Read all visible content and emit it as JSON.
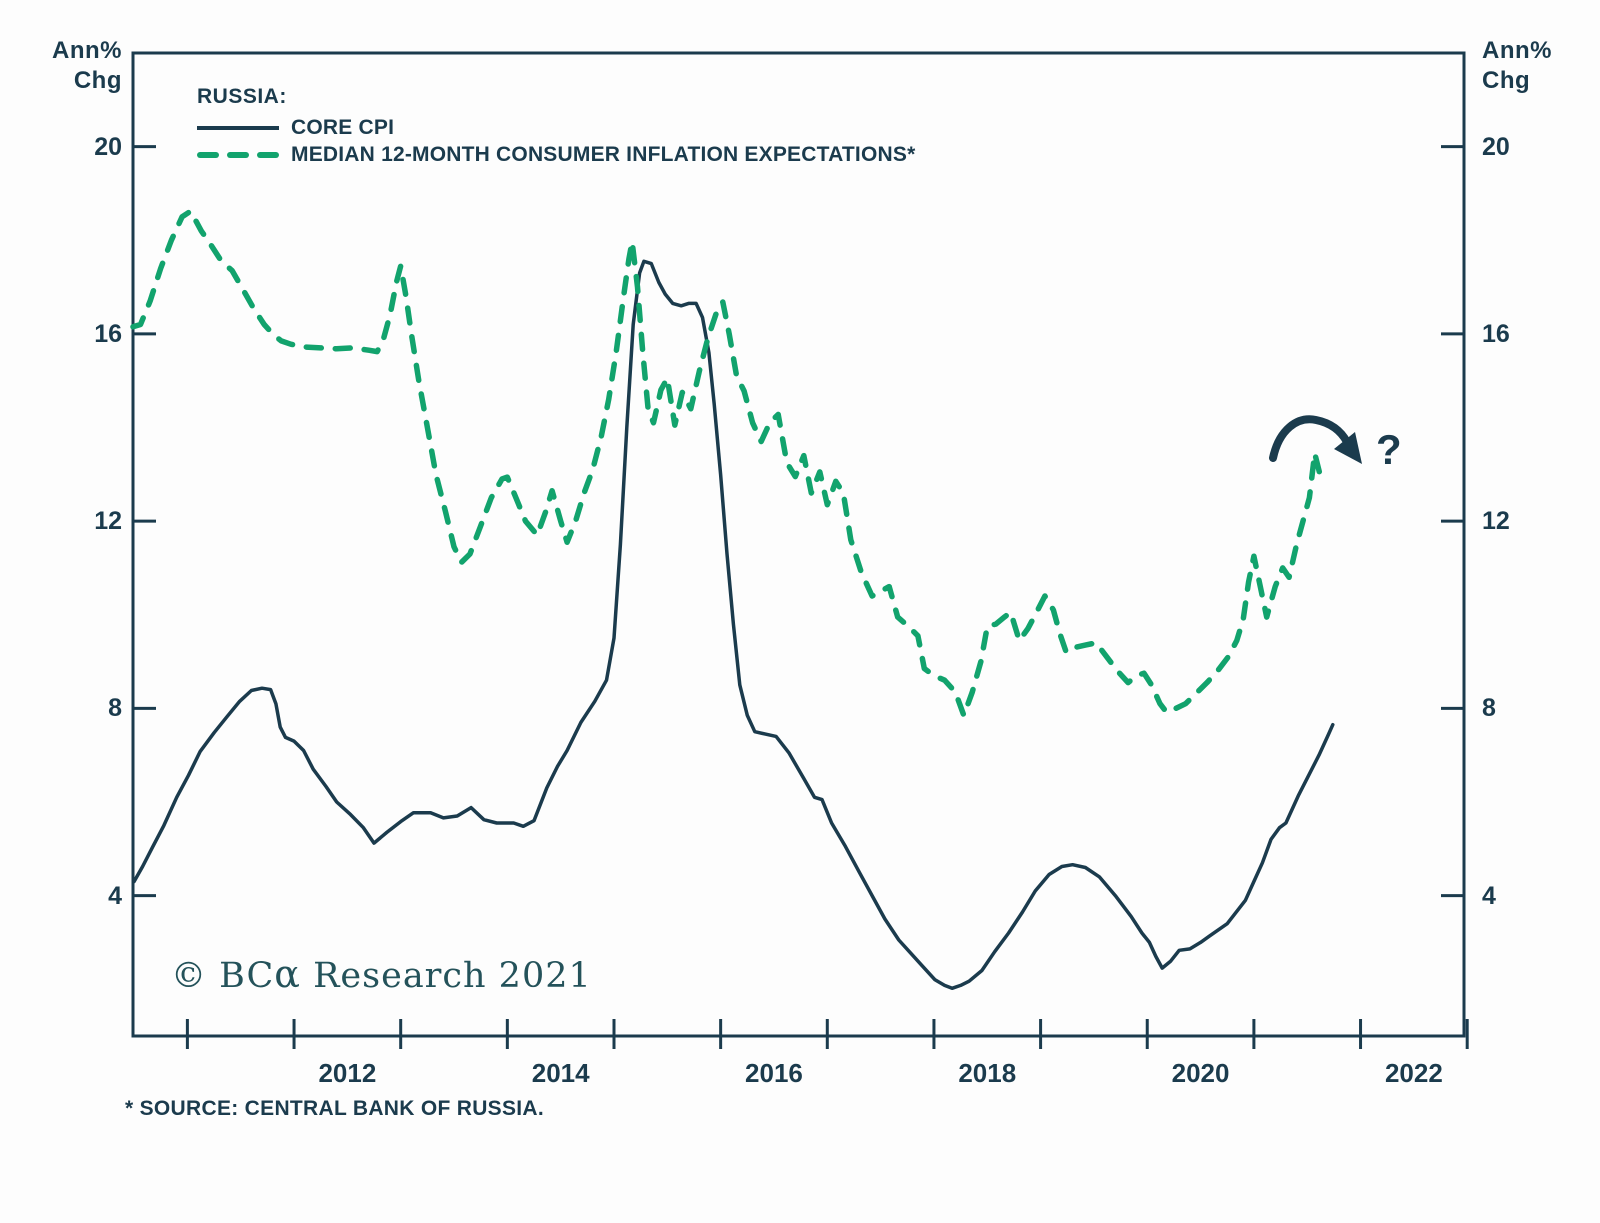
{
  "colors": {
    "navy": "#1b3b4d",
    "green": "#12a36d",
    "copyright_teal": "#24525a",
    "background": "#fdfdfd"
  },
  "axis_units": {
    "line1": "Ann%",
    "line2": "Chg"
  },
  "legend": {
    "title": "RUSSIA:",
    "series": [
      {
        "label": "CORE CPI",
        "swatch": "solid-navy-line"
      },
      {
        "label": "MEDIAN 12-MONTH CONSUMER INFLATION EXPECTATIONS*",
        "swatch": "dashed-green-line"
      }
    ]
  },
  "annotations": {
    "question_mark": "?",
    "trend_arrow": "curved-arrow-down-right"
  },
  "footer": {
    "copyright_prefix": "© BC",
    "copyright_alpha": "α",
    "copyright_suffix": " Research 2021",
    "source_note": "* SOURCE: CENTRAL BANK OF RUSSIA."
  },
  "chart_data": {
    "type": "line",
    "title": "RUSSIA: CORE CPI vs MEDIAN 12-MONTH CONSUMER INFLATION EXPECTATIONS",
    "xlabel": "",
    "ylabel": "Ann% Chg",
    "grid": false,
    "legend_position": "top-left-inside",
    "x_range": [
      2010.49,
      2022.97
    ],
    "y_range": [
      1.0,
      22.0
    ],
    "y_ticks": [
      4,
      8,
      12,
      16,
      20
    ],
    "x_ticks_years": [
      2011,
      2012,
      2013,
      2014,
      2015,
      2016,
      2017,
      2018,
      2019,
      2020,
      2021,
      2022,
      2023
    ],
    "x_year_labels": [
      2012,
      2014,
      2016,
      2018,
      2020,
      2022
    ],
    "series": [
      {
        "name": "CORE CPI",
        "style": "solid",
        "color": "#1b3b4d",
        "points": [
          [
            2010.5,
            4.3
          ],
          [
            2010.58,
            4.62
          ],
          [
            2010.67,
            5.02
          ],
          [
            2010.78,
            5.5
          ],
          [
            2010.9,
            6.1
          ],
          [
            2011.01,
            6.57
          ],
          [
            2011.12,
            7.08
          ],
          [
            2011.25,
            7.48
          ],
          [
            2011.37,
            7.82
          ],
          [
            2011.49,
            8.15
          ],
          [
            2011.6,
            8.38
          ],
          [
            2011.7,
            8.43
          ],
          [
            2011.78,
            8.4
          ],
          [
            2011.83,
            8.1
          ],
          [
            2011.87,
            7.6
          ],
          [
            2011.92,
            7.38
          ],
          [
            2012.0,
            7.3
          ],
          [
            2012.09,
            7.1
          ],
          [
            2012.18,
            6.7
          ],
          [
            2012.3,
            6.33
          ],
          [
            2012.4,
            6.0
          ],
          [
            2012.53,
            5.73
          ],
          [
            2012.65,
            5.45
          ],
          [
            2012.75,
            5.12
          ],
          [
            2012.87,
            5.35
          ],
          [
            2013.0,
            5.58
          ],
          [
            2013.12,
            5.77
          ],
          [
            2013.28,
            5.77
          ],
          [
            2013.4,
            5.66
          ],
          [
            2013.53,
            5.7
          ],
          [
            2013.66,
            5.88
          ],
          [
            2013.78,
            5.62
          ],
          [
            2013.9,
            5.55
          ],
          [
            2014.06,
            5.55
          ],
          [
            2014.15,
            5.48
          ],
          [
            2014.25,
            5.6
          ],
          [
            2014.37,
            6.3
          ],
          [
            2014.47,
            6.76
          ],
          [
            2014.56,
            7.1
          ],
          [
            2014.69,
            7.7
          ],
          [
            2014.82,
            8.15
          ],
          [
            2014.93,
            8.6
          ],
          [
            2015.0,
            9.5
          ],
          [
            2015.06,
            11.5
          ],
          [
            2015.12,
            14.0
          ],
          [
            2015.18,
            16.2
          ],
          [
            2015.24,
            17.3
          ],
          [
            2015.28,
            17.55
          ],
          [
            2015.35,
            17.5
          ],
          [
            2015.42,
            17.1
          ],
          [
            2015.48,
            16.85
          ],
          [
            2015.55,
            16.65
          ],
          [
            2015.63,
            16.6
          ],
          [
            2015.7,
            16.65
          ],
          [
            2015.77,
            16.65
          ],
          [
            2015.83,
            16.35
          ],
          [
            2015.89,
            15.6
          ],
          [
            2015.94,
            14.5
          ],
          [
            2016.0,
            13.0
          ],
          [
            2016.06,
            11.3
          ],
          [
            2016.12,
            9.8
          ],
          [
            2016.18,
            8.5
          ],
          [
            2016.25,
            7.85
          ],
          [
            2016.32,
            7.5
          ],
          [
            2016.42,
            7.45
          ],
          [
            2016.52,
            7.4
          ],
          [
            2016.64,
            7.05
          ],
          [
            2016.78,
            6.5
          ],
          [
            2016.88,
            6.1
          ],
          [
            2016.95,
            6.05
          ],
          [
            2017.04,
            5.55
          ],
          [
            2017.17,
            5.05
          ],
          [
            2017.3,
            4.5
          ],
          [
            2017.42,
            4.0
          ],
          [
            2017.54,
            3.5
          ],
          [
            2017.67,
            3.05
          ],
          [
            2017.77,
            2.8
          ],
          [
            2017.89,
            2.5
          ],
          [
            2018.01,
            2.2
          ],
          [
            2018.1,
            2.08
          ],
          [
            2018.17,
            2.02
          ],
          [
            2018.25,
            2.08
          ],
          [
            2018.33,
            2.17
          ],
          [
            2018.45,
            2.4
          ],
          [
            2018.57,
            2.8
          ],
          [
            2018.7,
            3.2
          ],
          [
            2018.83,
            3.65
          ],
          [
            2018.95,
            4.1
          ],
          [
            2019.08,
            4.45
          ],
          [
            2019.2,
            4.62
          ],
          [
            2019.3,
            4.66
          ],
          [
            2019.42,
            4.6
          ],
          [
            2019.55,
            4.4
          ],
          [
            2019.7,
            4.0
          ],
          [
            2019.85,
            3.55
          ],
          [
            2019.95,
            3.2
          ],
          [
            2020.02,
            3.0
          ],
          [
            2020.08,
            2.7
          ],
          [
            2020.14,
            2.45
          ],
          [
            2020.22,
            2.6
          ],
          [
            2020.3,
            2.83
          ],
          [
            2020.4,
            2.86
          ],
          [
            2020.5,
            3.0
          ],
          [
            2020.58,
            3.13
          ],
          [
            2020.75,
            3.4
          ],
          [
            2020.92,
            3.9
          ],
          [
            2021.0,
            4.3
          ],
          [
            2021.08,
            4.7
          ],
          [
            2021.16,
            5.2
          ],
          [
            2021.24,
            5.45
          ],
          [
            2021.3,
            5.55
          ],
          [
            2021.42,
            6.15
          ],
          [
            2021.52,
            6.6
          ],
          [
            2021.61,
            7.0
          ],
          [
            2021.7,
            7.45
          ],
          [
            2021.74,
            7.65
          ]
        ]
      },
      {
        "name": "MEDIAN 12-MONTH CONSUMER INFLATION EXPECTATIONS",
        "style": "dashed",
        "color": "#12a36d",
        "points": [
          [
            2010.49,
            16.15
          ],
          [
            2010.56,
            16.2
          ],
          [
            2010.65,
            16.7
          ],
          [
            2010.75,
            17.4
          ],
          [
            2010.85,
            18.0
          ],
          [
            2010.95,
            18.5
          ],
          [
            2011.03,
            18.62
          ],
          [
            2011.13,
            18.2
          ],
          [
            2011.22,
            17.9
          ],
          [
            2011.32,
            17.55
          ],
          [
            2011.42,
            17.35
          ],
          [
            2011.52,
            16.95
          ],
          [
            2011.62,
            16.55
          ],
          [
            2011.72,
            16.2
          ],
          [
            2011.8,
            16.0
          ],
          [
            2011.88,
            15.85
          ],
          [
            2011.97,
            15.78
          ],
          [
            2012.1,
            15.72
          ],
          [
            2012.25,
            15.7
          ],
          [
            2012.4,
            15.68
          ],
          [
            2012.55,
            15.7
          ],
          [
            2012.7,
            15.65
          ],
          [
            2012.78,
            15.62
          ],
          [
            2012.84,
            15.9
          ],
          [
            2012.9,
            16.4
          ],
          [
            2012.96,
            17.1
          ],
          [
            2013.0,
            17.45
          ],
          [
            2013.05,
            16.8
          ],
          [
            2013.1,
            16.0
          ],
          [
            2013.17,
            15.0
          ],
          [
            2013.25,
            14.0
          ],
          [
            2013.33,
            13.0
          ],
          [
            2013.42,
            12.2
          ],
          [
            2013.5,
            11.45
          ],
          [
            2013.57,
            11.12
          ],
          [
            2013.65,
            11.3
          ],
          [
            2013.75,
            11.9
          ],
          [
            2013.85,
            12.5
          ],
          [
            2013.95,
            12.9
          ],
          [
            2014.0,
            12.94
          ],
          [
            2014.08,
            12.5
          ],
          [
            2014.17,
            12.0
          ],
          [
            2014.28,
            11.7
          ],
          [
            2014.36,
            12.2
          ],
          [
            2014.42,
            12.65
          ],
          [
            2014.5,
            12.0
          ],
          [
            2014.56,
            11.55
          ],
          [
            2014.64,
            12.0
          ],
          [
            2014.72,
            12.6
          ],
          [
            2014.8,
            13.1
          ],
          [
            2014.88,
            13.8
          ],
          [
            2014.95,
            14.6
          ],
          [
            2015.02,
            15.6
          ],
          [
            2015.09,
            16.8
          ],
          [
            2015.14,
            17.6
          ],
          [
            2015.17,
            17.97
          ],
          [
            2015.22,
            17.0
          ],
          [
            2015.27,
            15.6
          ],
          [
            2015.32,
            14.4
          ],
          [
            2015.37,
            14.1
          ],
          [
            2015.44,
            14.8
          ],
          [
            2015.5,
            15.05
          ],
          [
            2015.57,
            14.05
          ],
          [
            2015.64,
            14.75
          ],
          [
            2015.72,
            14.4
          ],
          [
            2015.8,
            15.2
          ],
          [
            2015.88,
            15.9
          ],
          [
            2015.96,
            16.45
          ],
          [
            2016.02,
            16.68
          ],
          [
            2016.08,
            16.0
          ],
          [
            2016.15,
            15.1
          ],
          [
            2016.22,
            14.78
          ],
          [
            2016.3,
            14.1
          ],
          [
            2016.38,
            13.7
          ],
          [
            2016.46,
            14.1
          ],
          [
            2016.54,
            14.28
          ],
          [
            2016.62,
            13.25
          ],
          [
            2016.7,
            12.95
          ],
          [
            2016.78,
            13.4
          ],
          [
            2016.85,
            12.6
          ],
          [
            2016.93,
            13.05
          ],
          [
            2017.0,
            12.35
          ],
          [
            2017.08,
            12.85
          ],
          [
            2017.15,
            12.6
          ],
          [
            2017.22,
            11.6
          ],
          [
            2017.32,
            10.9
          ],
          [
            2017.42,
            10.4
          ],
          [
            2017.5,
            10.5
          ],
          [
            2017.58,
            10.6
          ],
          [
            2017.66,
            9.95
          ],
          [
            2017.76,
            9.75
          ],
          [
            2017.85,
            9.55
          ],
          [
            2017.91,
            8.85
          ],
          [
            2018.0,
            8.7
          ],
          [
            2018.1,
            8.6
          ],
          [
            2018.2,
            8.35
          ],
          [
            2018.28,
            7.85
          ],
          [
            2018.36,
            8.35
          ],
          [
            2018.44,
            9.0
          ],
          [
            2018.5,
            9.75
          ],
          [
            2018.58,
            9.8
          ],
          [
            2018.66,
            9.95
          ],
          [
            2018.72,
            10.05
          ],
          [
            2018.8,
            9.45
          ],
          [
            2018.88,
            9.7
          ],
          [
            2018.95,
            10.0
          ],
          [
            2019.04,
            10.4
          ],
          [
            2019.12,
            10.1
          ],
          [
            2019.18,
            9.6
          ],
          [
            2019.24,
            9.2
          ],
          [
            2019.32,
            9.3
          ],
          [
            2019.42,
            9.35
          ],
          [
            2019.52,
            9.4
          ],
          [
            2019.62,
            9.1
          ],
          [
            2019.72,
            8.8
          ],
          [
            2019.82,
            8.55
          ],
          [
            2019.9,
            8.7
          ],
          [
            2019.97,
            8.75
          ],
          [
            2020.04,
            8.5
          ],
          [
            2020.12,
            8.1
          ],
          [
            2020.18,
            7.92
          ],
          [
            2020.27,
            8.0
          ],
          [
            2020.36,
            8.1
          ],
          [
            2020.45,
            8.3
          ],
          [
            2020.56,
            8.55
          ],
          [
            2020.66,
            8.8
          ],
          [
            2020.76,
            9.1
          ],
          [
            2020.84,
            9.45
          ],
          [
            2020.9,
            9.9
          ],
          [
            2020.95,
            10.7
          ],
          [
            2021.0,
            11.25
          ],
          [
            2021.06,
            10.6
          ],
          [
            2021.12,
            9.95
          ],
          [
            2021.2,
            10.6
          ],
          [
            2021.27,
            11.0
          ],
          [
            2021.33,
            10.8
          ],
          [
            2021.4,
            11.5
          ],
          [
            2021.46,
            12.0
          ],
          [
            2021.52,
            12.5
          ],
          [
            2021.57,
            13.45
          ],
          [
            2021.63,
            12.9
          ]
        ]
      }
    ]
  }
}
